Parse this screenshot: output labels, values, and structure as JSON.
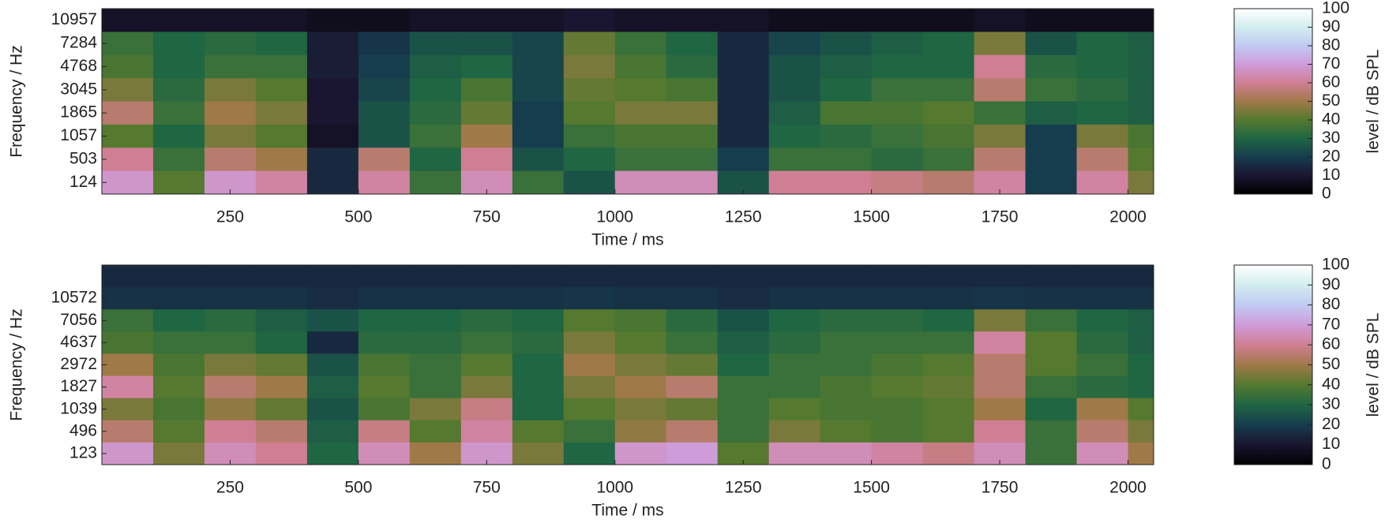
{
  "chart_data": [
    {
      "type": "heatmap",
      "xlabel": "Time / ms",
      "ylabel": "Frequency / Hz",
      "xlim": [
        0,
        2050
      ],
      "xticks": [
        250,
        500,
        750,
        1000,
        1250,
        1500,
        1750,
        2000
      ],
      "x_bins": [
        0,
        100,
        200,
        300,
        400,
        500,
        600,
        700,
        800,
        900,
        1000,
        1100,
        1200,
        1300,
        1400,
        1500,
        1600,
        1700,
        1800,
        1900,
        2000,
        2050
      ],
      "y_categories": [
        "10957",
        "7284",
        "4768",
        "3045",
        "1865",
        "1057",
        "503",
        "124"
      ],
      "values": [
        [
          8,
          8,
          8,
          8,
          6,
          6,
          8,
          8,
          8,
          10,
          8,
          8,
          8,
          6,
          6,
          6,
          6,
          8,
          6,
          6,
          6
        ],
        [
          35,
          30,
          32,
          30,
          12,
          18,
          25,
          25,
          22,
          42,
          35,
          30,
          15,
          22,
          25,
          28,
          30,
          45,
          25,
          30,
          28
        ],
        [
          38,
          30,
          35,
          35,
          12,
          20,
          28,
          30,
          22,
          45,
          38,
          32,
          15,
          25,
          28,
          30,
          30,
          60,
          32,
          30,
          28
        ],
        [
          45,
          32,
          45,
          40,
          10,
          22,
          30,
          38,
          22,
          42,
          40,
          38,
          15,
          25,
          30,
          35,
          35,
          55,
          35,
          32,
          28
        ],
        [
          55,
          35,
          50,
          45,
          10,
          25,
          32,
          42,
          20,
          40,
          45,
          45,
          15,
          28,
          38,
          38,
          40,
          35,
          28,
          30,
          28
        ],
        [
          40,
          30,
          45,
          40,
          8,
          25,
          35,
          50,
          20,
          35,
          38,
          38,
          15,
          30,
          32,
          35,
          38,
          45,
          20,
          45,
          38
        ],
        [
          60,
          35,
          55,
          50,
          15,
          55,
          30,
          60,
          25,
          30,
          35,
          35,
          20,
          35,
          35,
          32,
          35,
          55,
          20,
          55,
          40
        ],
        [
          68,
          40,
          68,
          62,
          15,
          62,
          35,
          65,
          35,
          25,
          65,
          65,
          25,
          60,
          60,
          58,
          55,
          62,
          20,
          62,
          45
        ]
      ],
      "colorbar": {
        "label": "level / dB SPL",
        "lim": [
          0,
          100
        ],
        "ticks": [
          0,
          10,
          20,
          30,
          40,
          50,
          60,
          70,
          80,
          90,
          100
        ]
      },
      "colormap": [
        "#000000",
        "#1a1530",
        "#163d4e",
        "#1f6642",
        "#54792f",
        "#a07949",
        "#d07e93",
        "#cf9cda",
        "#c1caf3",
        "#d2eeef",
        "#ffffff"
      ]
    },
    {
      "type": "heatmap",
      "xlabel": "Time / ms",
      "ylabel": "Frequency / Hz",
      "xlim": [
        0,
        2050
      ],
      "xticks": [
        250,
        500,
        750,
        1000,
        1250,
        1500,
        1750,
        2000
      ],
      "x_bins": [
        0,
        100,
        200,
        300,
        400,
        500,
        600,
        700,
        800,
        900,
        1000,
        1100,
        1200,
        1300,
        1400,
        1500,
        1600,
        1700,
        1800,
        1900,
        2000,
        2050
      ],
      "y_categories": [
        null,
        "10572",
        "7056",
        "4637",
        "2972",
        "1827",
        "1039",
        "496",
        "123"
      ],
      "values": [
        [
          15,
          15,
          15,
          15,
          15,
          15,
          15,
          15,
          15,
          15,
          15,
          15,
          15,
          15,
          15,
          15,
          15,
          15,
          15,
          15,
          15
        ],
        [
          17,
          17,
          17,
          17,
          16,
          17,
          17,
          17,
          17,
          18,
          17,
          17,
          16,
          17,
          17,
          17,
          17,
          18,
          17,
          17,
          17
        ],
        [
          35,
          30,
          32,
          28,
          25,
          30,
          30,
          32,
          30,
          40,
          38,
          32,
          25,
          30,
          32,
          32,
          30,
          45,
          35,
          30,
          28
        ],
        [
          38,
          35,
          35,
          30,
          15,
          32,
          32,
          35,
          32,
          45,
          40,
          35,
          28,
          32,
          35,
          35,
          35,
          62,
          40,
          32,
          28
        ],
        [
          50,
          38,
          45,
          42,
          25,
          38,
          35,
          40,
          30,
          50,
          45,
          42,
          30,
          35,
          35,
          38,
          40,
          55,
          40,
          35,
          30
        ],
        [
          62,
          40,
          55,
          50,
          28,
          40,
          35,
          45,
          30,
          45,
          50,
          55,
          35,
          35,
          38,
          40,
          42,
          55,
          35,
          32,
          30
        ],
        [
          45,
          38,
          48,
          42,
          25,
          38,
          45,
          58,
          30,
          40,
          45,
          42,
          35,
          40,
          38,
          38,
          40,
          50,
          30,
          50,
          40
        ],
        [
          55,
          40,
          60,
          55,
          28,
          58,
          40,
          62,
          40,
          35,
          48,
          55,
          35,
          45,
          40,
          38,
          40,
          60,
          35,
          55,
          45
        ],
        [
          68,
          45,
          65,
          60,
          30,
          65,
          50,
          68,
          45,
          30,
          68,
          70,
          40,
          65,
          65,
          62,
          58,
          65,
          35,
          65,
          50
        ]
      ],
      "colorbar": {
        "label": "level / dB SPL",
        "lim": [
          0,
          100
        ],
        "ticks": [
          0,
          10,
          20,
          30,
          40,
          50,
          60,
          70,
          80,
          90,
          100
        ]
      },
      "colormap": [
        "#000000",
        "#1a1530",
        "#163d4e",
        "#1f6642",
        "#54792f",
        "#a07949",
        "#d07e93",
        "#cf9cda",
        "#c1caf3",
        "#d2eeef",
        "#ffffff"
      ]
    }
  ]
}
